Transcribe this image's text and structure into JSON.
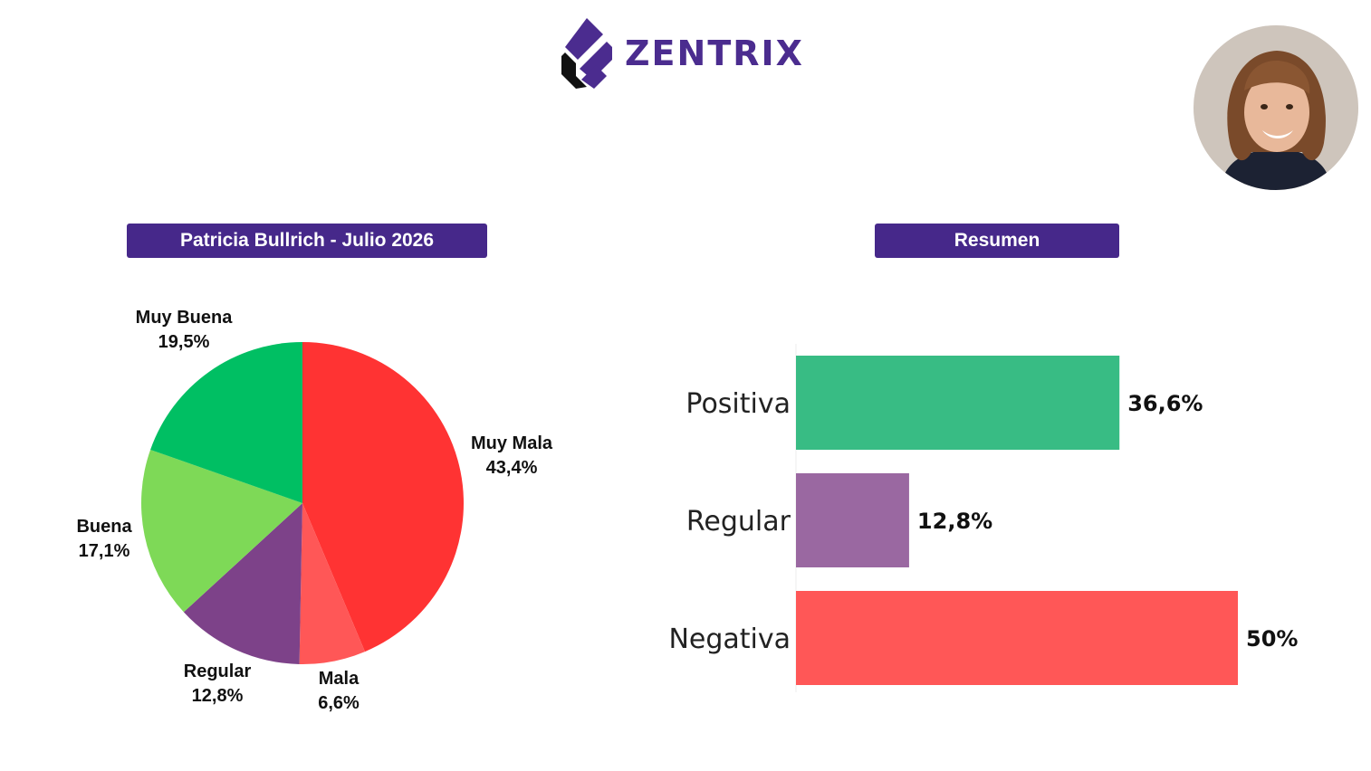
{
  "brand": {
    "name": "ZENTRIX",
    "color": "#4b2c8f",
    "icon": "zentrix-logo-mark"
  },
  "avatar": {
    "icon": "portrait-photo"
  },
  "chart_data": [
    {
      "type": "pie",
      "title": "Patricia Bullrich - Julio 2026",
      "slices": [
        {
          "label": "Muy Mala",
          "value": 43.4,
          "display": "43,4%",
          "color": "#ff3333"
        },
        {
          "label": "Mala",
          "value": 6.6,
          "display": "6,6%",
          "color": "#ff5757"
        },
        {
          "label": "Regular",
          "value": 12.8,
          "display": "12,8%",
          "color": "#7d4289"
        },
        {
          "label": "Buena",
          "value": 17.1,
          "display": "17,1%",
          "color": "#7ed957"
        },
        {
          "label": "Muy Buena",
          "value": 19.5,
          "display": "19,5%",
          "color": "#00bf63"
        }
      ],
      "start": "top",
      "direction": "clockwise"
    },
    {
      "type": "bar",
      "orientation": "horizontal",
      "title": "Resumen",
      "categories": [
        "Positiva",
        "Regular",
        "Negativa"
      ],
      "values": [
        36.6,
        12.8,
        50
      ],
      "display": [
        "36,6%",
        "12,8%",
        "50%"
      ],
      "colors": [
        "#38bc84",
        "#9a68a1",
        "#ff5757"
      ],
      "xlim": [
        0,
        50
      ]
    }
  ]
}
